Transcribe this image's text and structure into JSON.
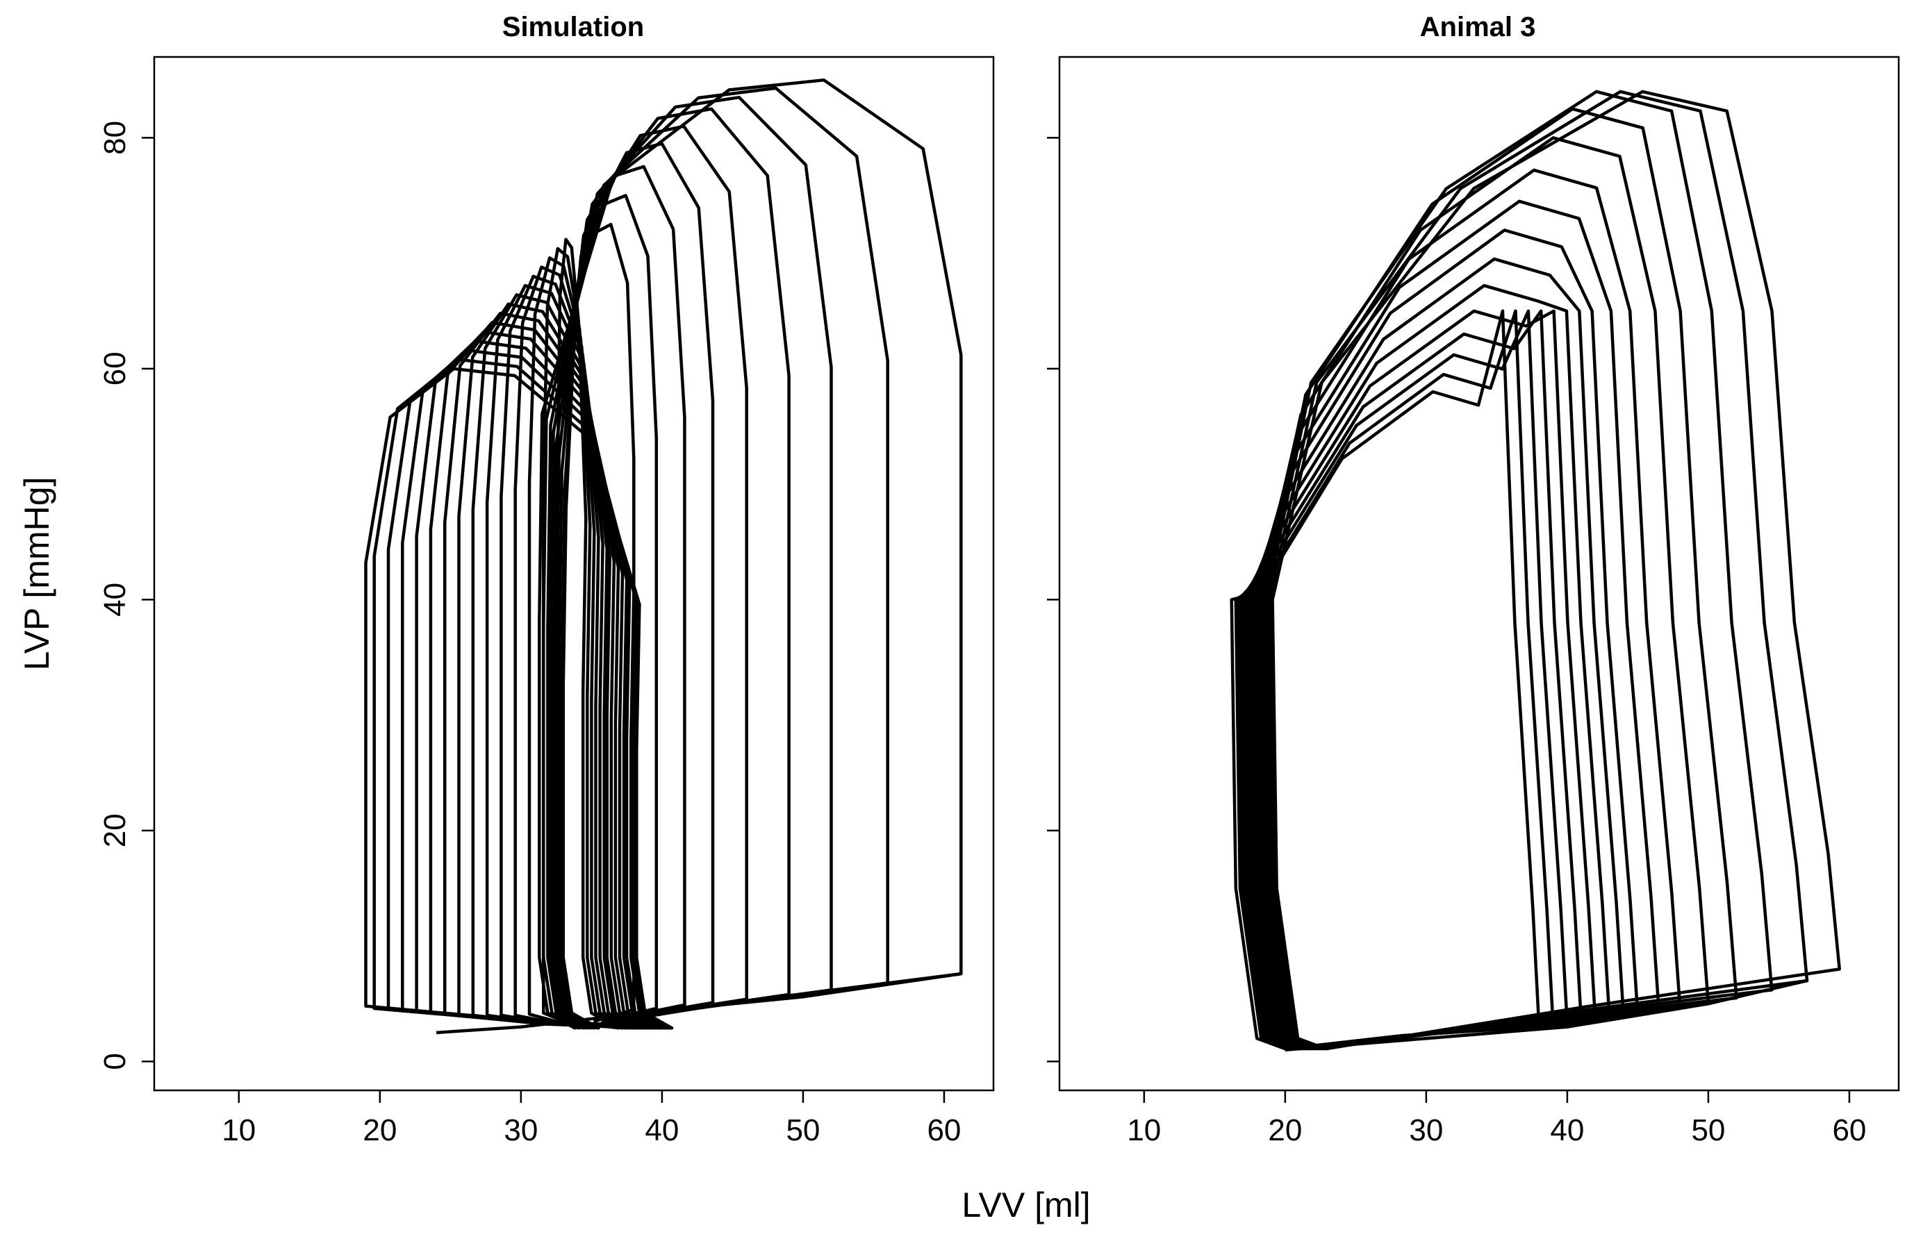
{
  "figure": {
    "xlabel": "LVV [ml]",
    "ylabel": "LVP [mmHg]"
  },
  "chart_data": [
    {
      "type": "line",
      "title": "Simulation",
      "xlabel": "LVV [ml]",
      "ylabel": "LVP [mmHg]",
      "xlim": [
        4,
        63.5
      ],
      "ylim": [
        -2.5,
        87
      ],
      "xticks": [
        10,
        20,
        30,
        40,
        50,
        60
      ],
      "yticks": [
        0,
        20,
        40,
        60,
        80
      ],
      "grid": false,
      "legend": "none",
      "loop_count": 24,
      "edv": [
        19.0,
        19.6,
        20.6,
        21.6,
        22.6,
        23.6,
        24.6,
        25.6,
        26.6,
        27.6,
        28.6,
        29.6,
        30.6,
        31.6,
        32.6,
        38.0,
        39.6,
        41.6,
        43.6,
        46.0,
        49.0,
        52.0,
        56.0,
        61.2
      ],
      "esv": [
        38.2,
        38.0,
        37.8,
        37.5,
        37.3,
        37.0,
        36.7,
        36.4,
        36.1,
        35.9,
        35.6,
        35.3,
        35.0,
        34.7,
        34.4,
        33.0,
        32.9,
        32.7,
        32.5,
        32.3,
        32.1,
        31.9,
        31.6,
        31.3
      ],
      "peak_pressure": [
        60.0,
        60.8,
        61.6,
        62.4,
        63.2,
        64.0,
        64.8,
        65.6,
        66.4,
        67.2,
        68.0,
        68.8,
        69.6,
        70.4,
        71.2,
        72.5,
        75.0,
        77.5,
        79.5,
        81.0,
        82.5,
        83.5,
        84.3,
        85.0
      ],
      "edp": [
        4.8,
        4.6,
        4.5,
        4.4,
        4.3,
        4.2,
        4.1,
        4.0,
        4.0,
        4.0,
        4.0,
        4.0,
        4.1,
        4.2,
        4.3,
        4.5,
        4.6,
        4.9,
        5.1,
        5.4,
        5.8,
        6.2,
        6.8,
        7.6
      ],
      "edpvr_points": [
        [
          24,
          2.5
        ],
        [
          30,
          3.0
        ],
        [
          40,
          4.4
        ],
        [
          50,
          5.6
        ],
        [
          61.2,
          7.6
        ]
      ]
    },
    {
      "type": "line",
      "title": "Animal 3",
      "xlabel": "LVV [ml]",
      "ylabel": "LVP [mmHg]",
      "xlim": [
        4,
        63.5
      ],
      "ylim": [
        -2.5,
        87
      ],
      "xticks": [
        10,
        20,
        30,
        40,
        50,
        60
      ],
      "yticks": [
        0,
        20,
        40,
        60,
        80
      ],
      "grid": false,
      "legend": "none",
      "loop_count": 15,
      "edv": [
        38.0,
        39.0,
        40.0,
        41.0,
        42.0,
        43.0,
        44.0,
        45.0,
        46.5,
        48.0,
        50.0,
        52.0,
        54.5,
        57.0,
        59.3
      ],
      "esv": [
        16.5,
        16.8,
        17.0,
        17.2,
        17.4,
        17.6,
        17.8,
        18.0,
        18.2,
        18.4,
        18.6,
        18.8,
        19.0,
        19.2,
        19.4
      ],
      "peak_pressure": [
        58.0,
        59.5,
        61.2,
        63.0,
        65.0,
        67.2,
        69.5,
        72.0,
        74.5,
        77.2,
        80.0,
        82.5,
        84.0,
        84.0,
        84.0
      ],
      "edp": [
        3.0,
        3.1,
        3.2,
        3.3,
        3.4,
        3.6,
        3.8,
        4.0,
        4.3,
        4.6,
        5.0,
        5.5,
        6.2,
        7.0,
        8.0
      ],
      "edpvr_points": [
        [
          20,
          1.0
        ],
        [
          30,
          2.0
        ],
        [
          40,
          3.0
        ],
        [
          50,
          5.0
        ],
        [
          57,
          7.0
        ]
      ]
    }
  ]
}
